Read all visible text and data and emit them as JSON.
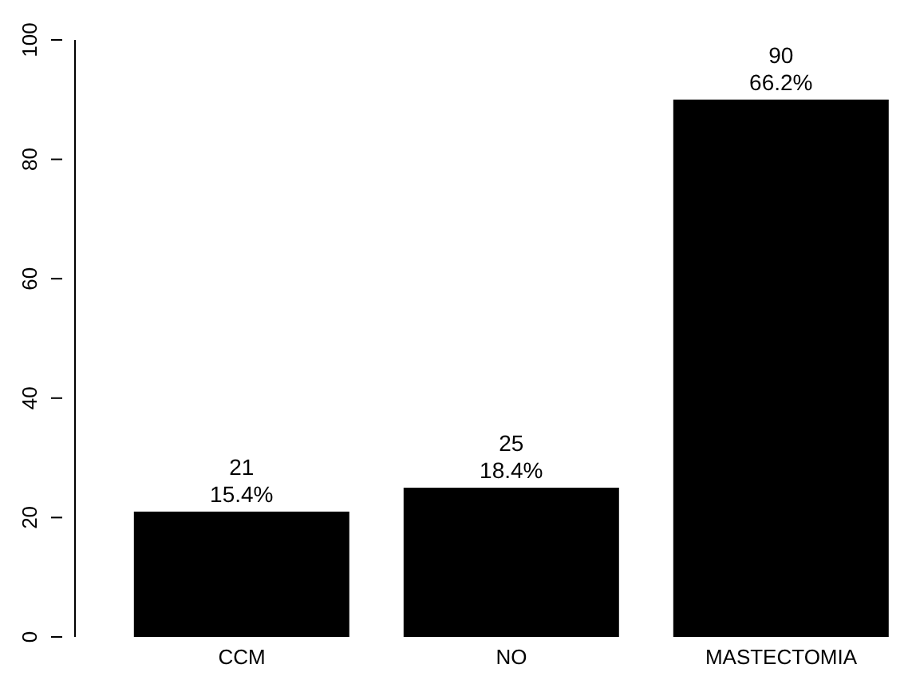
{
  "chart_data": {
    "type": "bar",
    "categories": [
      "CCM",
      "NO",
      "MASTECTOMIA"
    ],
    "values": [
      21,
      25,
      90
    ],
    "color": "#000000",
    "value_labels": [
      "21\n15.4%",
      "25\n18.4%",
      "90\n66.2%"
    ],
    "ylim": [
      0,
      100
    ],
    "yticks": [
      0,
      20,
      40,
      60,
      80,
      100
    ],
    "grid": false
  }
}
